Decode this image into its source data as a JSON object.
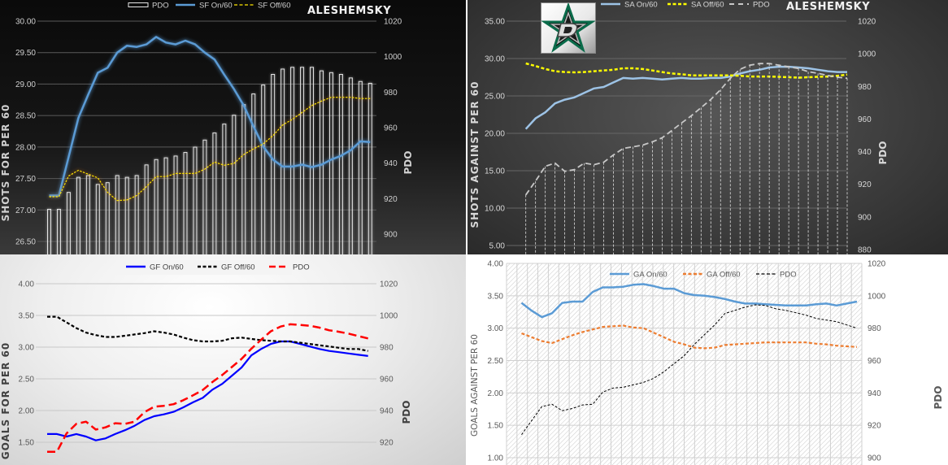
{
  "chart_data": [
    {
      "type": "line",
      "title": "ALESHEMSKY",
      "ylabel": "SHOTS FOR PER 60",
      "y2label": "PDO",
      "ylim": [
        26.5,
        30.0
      ],
      "y2lim": [
        900,
        1020
      ],
      "yticks": [
        "30.00",
        "29.50",
        "29.00",
        "28.50",
        "28.00",
        "27.50",
        "27.00",
        "26.50"
      ],
      "y2ticks": [
        "1020",
        "1000",
        "980",
        "960",
        "940",
        "920",
        "900"
      ],
      "grid": true,
      "legend": "top",
      "series": [
        {
          "name": "PDO",
          "axis": "right",
          "style": "bar-outline",
          "color": "#e6e6e6",
          "values": [
            914,
            914,
            923.5,
            932,
            933,
            928,
            929,
            933,
            932,
            933,
            939,
            942,
            943,
            944,
            946,
            949,
            953,
            957,
            962,
            967,
            973,
            979,
            984,
            990,
            993,
            994,
            994,
            994,
            992,
            991,
            990,
            988,
            986,
            985
          ]
        },
        {
          "name": "SF On/60",
          "axis": "left",
          "style": "solid",
          "color": "#5b9bd5",
          "values": [
            27.23,
            27.23,
            27.84,
            28.46,
            28.83,
            29.18,
            29.26,
            29.5,
            29.61,
            29.59,
            29.63,
            29.75,
            29.66,
            29.63,
            29.69,
            29.63,
            29.5,
            29.39,
            29.15,
            28.92,
            28.66,
            28.33,
            28.01,
            27.8,
            27.69,
            27.69,
            27.72,
            27.68,
            27.72,
            27.8,
            27.86,
            27.95,
            28.09,
            28.08
          ]
        },
        {
          "name": "SF Off/60",
          "axis": "left",
          "style": "dotted",
          "color": "#ffe600",
          "values": [
            27.21,
            27.21,
            27.54,
            27.63,
            27.57,
            27.51,
            27.28,
            27.15,
            27.16,
            27.23,
            27.37,
            27.53,
            27.53,
            27.58,
            27.58,
            27.58,
            27.65,
            27.76,
            27.71,
            27.74,
            27.88,
            27.97,
            28.05,
            28.18,
            28.35,
            28.44,
            28.55,
            28.66,
            28.73,
            28.79,
            28.79,
            28.79,
            28.77,
            28.77
          ]
        }
      ]
    },
    {
      "type": "line",
      "title": "ALESHEMSKY",
      "ylabel": "SHOTS AGAINST PER 60",
      "y2label": "PDO",
      "ylim": [
        5,
        35
      ],
      "y2lim": [
        880,
        1020
      ],
      "yticks": [
        "35.00",
        "30.00",
        "25.00",
        "20.00",
        "15.00",
        "10.00",
        "5.00"
      ],
      "y2ticks": [
        "1020",
        "1000",
        "980",
        "960",
        "940",
        "920",
        "900",
        "880"
      ],
      "grid": true,
      "legend": "top",
      "logo": "dallas-stars",
      "series": [
        {
          "name": "SA On/60",
          "axis": "left",
          "style": "solid",
          "color": "#9dc3e6",
          "values": [
            20.58,
            22.0,
            22.8,
            24.0,
            24.5,
            24.8,
            25.4,
            26.0,
            26.2,
            26.8,
            27.4,
            27.3,
            27.4,
            27.3,
            27.2,
            27.3,
            27.4,
            27.3,
            27.3,
            27.4,
            27.4,
            27.6,
            28.0,
            28.3,
            28.5,
            28.8,
            28.9,
            28.9,
            28.8,
            28.7,
            28.5,
            28.3,
            28.2,
            28.2
          ]
        },
        {
          "name": "SA Off/60",
          "axis": "left",
          "style": "dashed",
          "color": "#ffff00",
          "values": [
            29.35,
            29.0,
            28.6,
            28.3,
            28.2,
            28.15,
            28.2,
            28.3,
            28.4,
            28.5,
            28.7,
            28.7,
            28.6,
            28.4,
            28.2,
            28.0,
            27.9,
            27.75,
            27.75,
            27.75,
            27.75,
            27.75,
            27.7,
            27.6,
            27.6,
            27.6,
            27.55,
            27.5,
            27.45,
            27.5,
            27.55,
            27.6,
            27.7,
            27.85
          ]
        },
        {
          "name": "PDO",
          "axis": "right",
          "style": "dashed-droplines",
          "color": "#c8c8c8",
          "values": [
            913.5,
            922,
            931,
            933,
            928,
            929,
            933,
            932,
            933.5,
            938,
            942,
            943,
            944,
            946,
            948.5,
            953,
            957.6,
            962,
            967,
            972,
            978,
            985,
            990.5,
            993,
            994,
            994,
            993,
            992,
            991,
            989,
            988,
            986.7,
            985.6,
            985
          ]
        }
      ]
    },
    {
      "type": "line",
      "ylabel": "GOALS FOR PER 60",
      "y2label": "PDO",
      "ylim": [
        1.5,
        4.0
      ],
      "y2lim": [
        920,
        1020
      ],
      "yticks": [
        "4.00",
        "3.50",
        "3.00",
        "2.50",
        "2.00",
        "1.50"
      ],
      "y2ticks": [
        "1020",
        "1000",
        "980",
        "960",
        "940",
        "920"
      ],
      "grid": true,
      "legend": "top",
      "series": [
        {
          "name": "GF On/60",
          "axis": "left",
          "style": "solid",
          "color": "#0000ff",
          "values": [
            1.63,
            1.63,
            1.59,
            1.63,
            1.59,
            1.53,
            1.56,
            1.63,
            1.69,
            1.76,
            1.85,
            1.91,
            1.94,
            1.98,
            2.05,
            2.13,
            2.2,
            2.33,
            2.42,
            2.55,
            2.68,
            2.87,
            2.97,
            3.05,
            3.09,
            3.09,
            3.05,
            3.01,
            2.97,
            2.94,
            2.92,
            2.9,
            2.88,
            2.86
          ]
        },
        {
          "name": "GF Off/60",
          "axis": "left",
          "style": "dashed",
          "color": "#000000",
          "values": [
            3.48,
            3.48,
            3.39,
            3.3,
            3.23,
            3.19,
            3.16,
            3.16,
            3.18,
            3.2,
            3.22,
            3.25,
            3.23,
            3.2,
            3.15,
            3.11,
            3.09,
            3.09,
            3.1,
            3.14,
            3.15,
            3.13,
            3.11,
            3.1,
            3.09,
            3.09,
            3.07,
            3.05,
            3.03,
            3.01,
            2.99,
            2.97,
            2.97,
            2.94
          ]
        },
        {
          "name": "PDO",
          "axis": "right",
          "style": "longdash",
          "color": "#ff0000",
          "values": [
            914,
            914,
            925.6,
            931.6,
            933,
            928,
            929.4,
            932,
            931.6,
            933,
            939,
            942.4,
            943,
            944,
            946.5,
            949.6,
            953,
            958,
            962.4,
            967.5,
            972.6,
            979,
            984.6,
            990,
            993,
            994.4,
            994,
            993.5,
            992.3,
            990.6,
            989.7,
            988.5,
            987,
            985.5
          ]
        }
      ]
    },
    {
      "type": "line",
      "ylabel": "GOALS AGAINST PER 60",
      "y2label": "PDO",
      "ylim": [
        1.0,
        4.0
      ],
      "y2lim": [
        900,
        1020
      ],
      "yticks": [
        "4.00",
        "3.50",
        "3.00",
        "2.50",
        "2.00",
        "1.50",
        "1.00"
      ],
      "y2ticks": [
        "1020",
        "1000",
        "980",
        "960",
        "940",
        "920",
        "900"
      ],
      "grid": true,
      "legend": "top",
      "series": [
        {
          "name": "GA On/60",
          "axis": "left",
          "style": "solid",
          "color": "#5b9bd5",
          "values": [
            3.39,
            3.27,
            3.17,
            3.23,
            3.39,
            3.41,
            3.41,
            3.56,
            3.63,
            3.63,
            3.64,
            3.67,
            3.68,
            3.65,
            3.61,
            3.61,
            3.54,
            3.51,
            3.5,
            3.48,
            3.45,
            3.41,
            3.38,
            3.38,
            3.37,
            3.36,
            3.35,
            3.35,
            3.35,
            3.37,
            3.38,
            3.35,
            3.38,
            3.41
          ]
        },
        {
          "name": "GA Off/60",
          "axis": "left",
          "style": "dashed",
          "color": "#ed7d31",
          "values": [
            2.92,
            2.86,
            2.8,
            2.77,
            2.83,
            2.89,
            2.94,
            2.98,
            3.02,
            3.03,
            3.04,
            3.01,
            3.0,
            2.93,
            2.86,
            2.79,
            2.75,
            2.7,
            2.69,
            2.7,
            2.74,
            2.75,
            2.76,
            2.77,
            2.78,
            2.78,
            2.78,
            2.78,
            2.78,
            2.76,
            2.75,
            2.73,
            2.72,
            2.71
          ]
        },
        {
          "name": "PDO",
          "axis": "right",
          "style": "thin-dashed",
          "color": "#000000",
          "values": [
            914.2,
            923,
            931.6,
            933,
            929,
            930.4,
            932.6,
            933,
            940.5,
            943,
            943.5,
            945,
            946.5,
            949,
            953,
            958,
            963,
            970,
            976,
            982,
            989,
            991,
            993,
            994.4,
            994,
            992,
            991,
            989.5,
            988,
            986,
            985,
            984,
            982,
            980
          ]
        }
      ]
    }
  ]
}
